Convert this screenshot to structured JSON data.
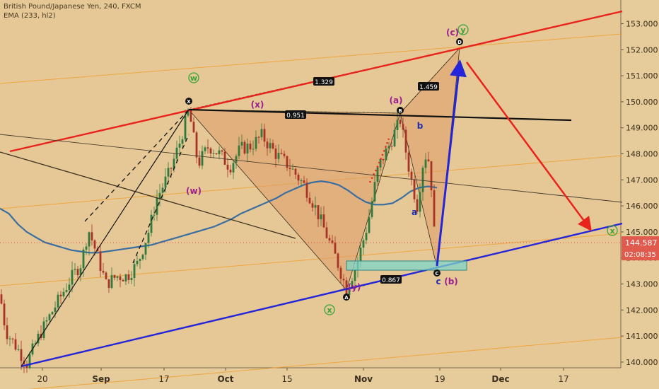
{
  "header": {
    "symbol_line": "British Pound/Japanese Yen, 240, FXCM",
    "indicator_line": "EMA (233, hl2)"
  },
  "price_tag": {
    "value": "144.587",
    "countdown": "02:08:35",
    "color": "#e05a4e"
  },
  "colors": {
    "background": "#e5c896",
    "axis_panel": "#e6cb9b",
    "candle_up": "#2f7a3c",
    "candle_down": "#a83226",
    "ema": "#3a6ea0",
    "pattern_fill": "#e09c68",
    "red_line": "#e8231c",
    "blue_line": "#2424d8",
    "orange_line": "#f0a030",
    "green_label": "#3aa33a",
    "magenta_label": "#9b1f8f",
    "blue_label": "#1d2fb0"
  },
  "chart_data": {
    "type": "candlestick",
    "y_axis": {
      "ticks": [
        "153.000",
        "152.000",
        "151.000",
        "150.000",
        "149.000",
        "148.000",
        "147.000",
        "146.000",
        "145.000",
        "144.000",
        "143.000",
        "142.000",
        "141.000",
        "140.000"
      ],
      "ylim": [
        139.85,
        153.55
      ],
      "position": "right"
    },
    "x_axis": {
      "ticks": [
        "20",
        "Sep",
        "17",
        "Oct",
        "15",
        "Nov",
        "19",
        "Dec",
        "17"
      ]
    },
    "ratio_labels": [
      "1.329",
      "0.951",
      "1.459",
      "0.867"
    ],
    "pivot_labels": [
      "X",
      "A",
      "B",
      "C",
      "D"
    ],
    "wave_labels": {
      "magenta": [
        "(w)",
        "(x)",
        "(y)",
        "(a)",
        "(c)",
        "(b)"
      ],
      "green": [
        "w",
        "x",
        "y",
        "x"
      ],
      "blue": [
        "a",
        "b",
        "c"
      ]
    },
    "series": [
      {
        "name": "",
        "color": "#3a6ea0",
        "values": [
          145.9,
          145.7,
          145.3,
          145.0,
          144.8,
          144.6,
          144.5,
          144.4,
          144.3,
          144.25,
          144.2,
          144.2,
          144.25,
          144.3,
          144.35,
          144.4,
          144.45,
          144.5,
          144.6,
          144.7,
          144.8,
          144.9,
          145.0,
          145.1,
          145.2,
          145.35,
          145.5,
          145.7,
          145.85,
          146.0,
          146.15,
          146.3,
          146.5,
          146.65,
          146.8,
          146.9,
          146.95,
          146.9,
          146.8,
          146.6,
          146.35,
          146.15,
          146.05,
          146.05,
          146.1,
          146.3,
          146.55,
          146.7,
          146.75,
          146.7
        ]
      }
    ]
  }
}
